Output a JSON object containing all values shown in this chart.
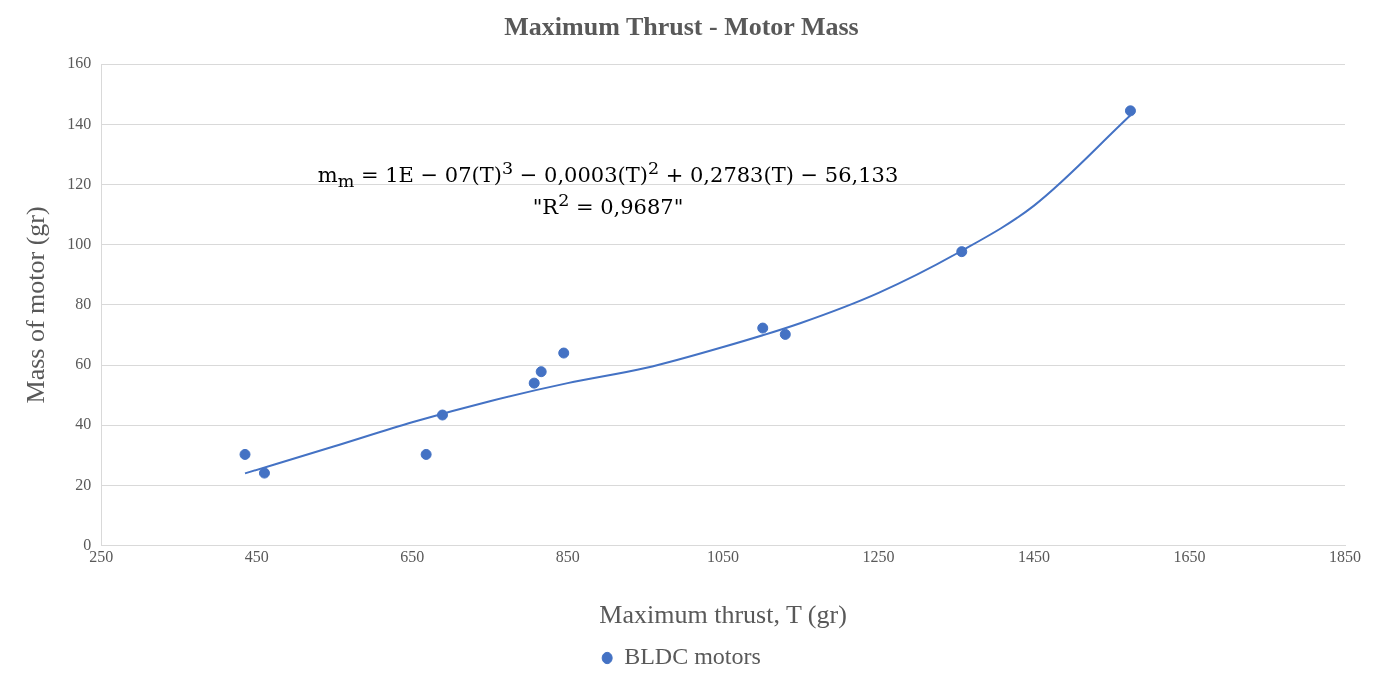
{
  "chart_data": {
    "type": "scatter",
    "title": "Maximum Thrust - Motor Mass",
    "xlabel": "Maximum thrust, T (gr)",
    "ylabel": "Mass of motor (gr)",
    "x": [
      435,
      460,
      668,
      689,
      807,
      816,
      845,
      1101,
      1130,
      1357,
      1574
    ],
    "series": [
      {
        "name": "BLDC motors",
        "color": "#4472c4",
        "marker": "circle",
        "values": [
          30.3,
          24.1,
          30.3,
          43.4,
          54,
          57.8,
          64,
          72.3,
          70.2,
          97.7,
          144.5
        ]
      },
      {
        "type": "line",
        "color": "#4472c4",
        "marker": "none",
        "x": [
          435,
          550,
          650,
          750,
          850,
          950,
          1050,
          1150,
          1250,
          1350,
          1450,
          1574
        ],
        "values": [
          24,
          33,
          41,
          48,
          54,
          59,
          66,
          74,
          84,
          97,
          113,
          143
        ]
      }
    ],
    "xlim": [
      250,
      1850
    ],
    "xticks": [
      250,
      450,
      650,
      850,
      1050,
      1250,
      1450,
      1650,
      1850
    ],
    "ylim": [
      0,
      160
    ],
    "yticks": [
      0,
      20,
      40,
      60,
      80,
      100,
      120,
      140,
      160
    ],
    "grid": "y",
    "legend": "bottom",
    "annotations": [
      "m$_{m}$ = 1E − 07(T)$^{3}$ − 0,0003(T)$^{2}$ + 0,2783(T) − 56,133",
      "\"R$^{2}$ = 0,9687\""
    ]
  }
}
